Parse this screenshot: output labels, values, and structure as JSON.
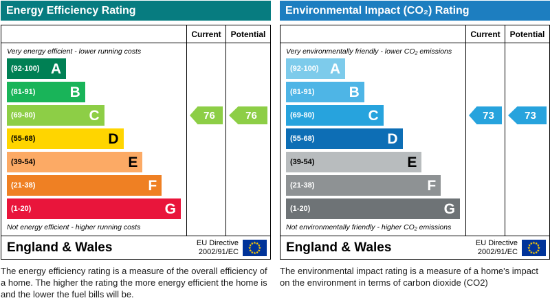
{
  "panels": [
    {
      "title": "Energy Efficiency Rating",
      "header_color": "#077c80",
      "columns": {
        "current": "Current",
        "potential": "Potential"
      },
      "top_note": "Very energy efficient - lower running costs",
      "bottom_note": "Not energy efficient - higher running costs",
      "bands": [
        {
          "range": "(92-100)",
          "letter": "A",
          "color": "#008054",
          "width": "34%",
          "text_color": "#ffffff"
        },
        {
          "range": "(81-91)",
          "letter": "B",
          "color": "#19b459",
          "width": "45%",
          "text_color": "#ffffff"
        },
        {
          "range": "(69-80)",
          "letter": "C",
          "color": "#8dce46",
          "width": "56%",
          "text_color": "#ffffff"
        },
        {
          "range": "(55-68)",
          "letter": "D",
          "color": "#ffd500",
          "width": "67%",
          "text_color": "#000000"
        },
        {
          "range": "(39-54)",
          "letter": "E",
          "color": "#fcaa65",
          "width": "78%",
          "text_color": "#000000"
        },
        {
          "range": "(21-38)",
          "letter": "F",
          "color": "#ef8023",
          "width": "89%",
          "text_color": "#ffffff"
        },
        {
          "range": "(1-20)",
          "letter": "G",
          "color": "#e9153b",
          "width": "100%",
          "text_color": "#ffffff"
        }
      ],
      "current": {
        "value": "76",
        "color": "#8dce46"
      },
      "potential": {
        "value": "76",
        "color": "#8dce46"
      },
      "footer": {
        "region": "England & Wales",
        "directive_line1": "EU Directive",
        "directive_line2": "2002/91/EC"
      },
      "description": "The energy efficiency rating is a measure of the overall efficiency of a home.  The higher the rating the more energy efficient the home is and the lower the fuel bills will be."
    },
    {
      "title": "Environmental Impact (CO₂) Rating",
      "header_color": "#1d7ec0",
      "columns": {
        "current": "Current",
        "potential": "Potential"
      },
      "top_note": "Very environmentally friendly - lower CO₂ emissions",
      "bottom_note": "Not environmentally friendly - higher CO₂ emissions",
      "bands": [
        {
          "range": "(92-100)",
          "letter": "A",
          "color": "#7dcbeb",
          "width": "34%",
          "text_color": "#ffffff"
        },
        {
          "range": "(81-91)",
          "letter": "B",
          "color": "#4eb5e6",
          "width": "45%",
          "text_color": "#ffffff"
        },
        {
          "range": "(69-80)",
          "letter": "C",
          "color": "#27a3dd",
          "width": "56%",
          "text_color": "#ffffff"
        },
        {
          "range": "(55-68)",
          "letter": "D",
          "color": "#0d6eb5",
          "width": "67%",
          "text_color": "#ffffff"
        },
        {
          "range": "(39-54)",
          "letter": "E",
          "color": "#b8bcbe",
          "width": "78%",
          "text_color": "#000000"
        },
        {
          "range": "(21-38)",
          "letter": "F",
          "color": "#8e9294",
          "width": "89%",
          "text_color": "#ffffff"
        },
        {
          "range": "(1-20)",
          "letter": "G",
          "color": "#6e7376",
          "width": "100%",
          "text_color": "#ffffff"
        }
      ],
      "current": {
        "value": "73",
        "color": "#27a3dd"
      },
      "potential": {
        "value": "73",
        "color": "#27a3dd"
      },
      "footer": {
        "region": "England & Wales",
        "directive_line1": "EU Directive",
        "directive_line2": "2002/91/EC"
      },
      "description": "The environmental impact rating is a measure of a home's impact on the environment in terms of carbon dioxide (CO2)"
    }
  ],
  "flag": {
    "bg": "#003399",
    "star_color": "#ffcc00"
  },
  "chart_data": [
    {
      "type": "bar",
      "title": "Energy Efficiency Rating",
      "categories": [
        "A",
        "B",
        "C",
        "D",
        "E",
        "F",
        "G"
      ],
      "band_ranges": [
        "92-100",
        "81-91",
        "69-80",
        "55-68",
        "39-54",
        "21-38",
        "1-20"
      ],
      "series": [
        {
          "name": "Current",
          "values": [
            76
          ]
        },
        {
          "name": "Potential",
          "values": [
            76
          ]
        }
      ],
      "current": 76,
      "current_band": "C",
      "potential": 76,
      "potential_band": "C",
      "xlim": [
        1,
        100
      ],
      "annotations": [
        "Very energy efficient - lower running costs",
        "Not energy efficient - higher running costs",
        "England & Wales",
        "EU Directive 2002/91/EC"
      ]
    },
    {
      "type": "bar",
      "title": "Environmental Impact (CO₂) Rating",
      "categories": [
        "A",
        "B",
        "C",
        "D",
        "E",
        "F",
        "G"
      ],
      "band_ranges": [
        "92-100",
        "81-91",
        "69-80",
        "55-68",
        "39-54",
        "21-38",
        "1-20"
      ],
      "series": [
        {
          "name": "Current",
          "values": [
            73
          ]
        },
        {
          "name": "Potential",
          "values": [
            73
          ]
        }
      ],
      "current": 73,
      "current_band": "C",
      "potential": 73,
      "potential_band": "C",
      "xlim": [
        1,
        100
      ],
      "annotations": [
        "Very environmentally friendly - lower CO₂ emissions",
        "Not environmentally friendly - higher CO₂ emissions",
        "England & Wales",
        "EU Directive 2002/91/EC"
      ]
    }
  ]
}
